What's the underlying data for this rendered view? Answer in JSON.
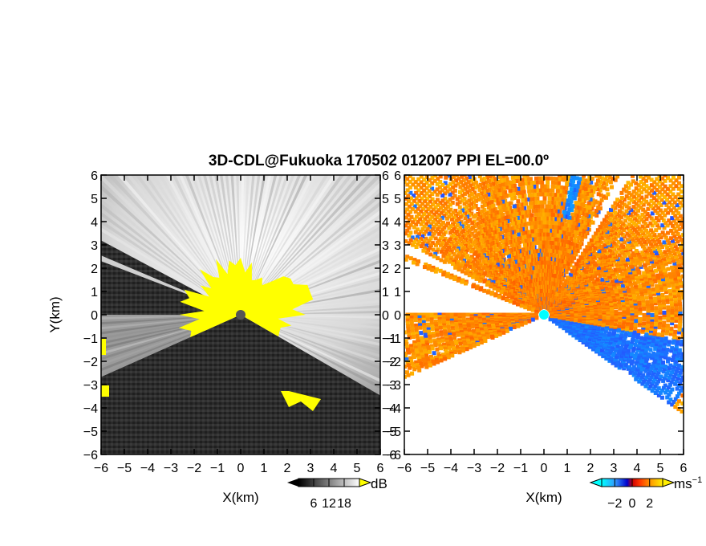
{
  "chart_data": [
    {
      "type": "heatmap",
      "title": "3D-CDL@Fukuoka 170502 012007 PPI EL=00.0º",
      "panel": "left",
      "xlabel": "X(km)",
      "ylabel": "Y(km)",
      "xlim": [
        -6,
        6
      ],
      "ylim": [
        -6,
        6
      ],
      "x_ticks": [
        "−6",
        "−5",
        "−4",
        "−3",
        "−2",
        "−1",
        "0",
        "1",
        "2",
        "3",
        "4",
        "5",
        "6"
      ],
      "y_ticks": [
        "6",
        "5",
        "4",
        "3",
        "2",
        "1",
        "0",
        "−1",
        "−2",
        "−3",
        "−4",
        "−5",
        "−6"
      ],
      "colorbar": {
        "label": "dB",
        "ticks": [
          6,
          12,
          18
        ],
        "tick_labels": [
          "6",
          "12",
          "18"
        ],
        "range": [
          0,
          24
        ]
      },
      "colors": {
        "background": "#2b2b2b",
        "saturated": "#ffff00",
        "radar": "#555555"
      }
    },
    {
      "type": "heatmap",
      "panel": "right",
      "xlabel": "X(km)",
      "ylabel": "",
      "xlim": [
        -6,
        6
      ],
      "ylim": [
        -6,
        6
      ],
      "x_ticks": [
        "−6",
        "−5",
        "−4",
        "−3",
        "−2",
        "−1",
        "0",
        "1",
        "2",
        "3",
        "4",
        "5",
        "6"
      ],
      "y_ticks": [
        "6",
        "5",
        "4",
        "3",
        "2",
        "1",
        "0",
        "−1",
        "−2",
        "−3",
        "−4",
        "−5",
        "−6"
      ],
      "colorbar": {
        "label": "ms",
        "label_sup": "−1",
        "ticks": [
          -2,
          0,
          2
        ],
        "tick_labels": [
          "−2",
          "0",
          "2"
        ],
        "range": [
          -3.5,
          3.5
        ]
      },
      "colors": {
        "negative": "#3399ff",
        "positive": "#ff6600",
        "radar": "#00ffff"
      }
    }
  ]
}
